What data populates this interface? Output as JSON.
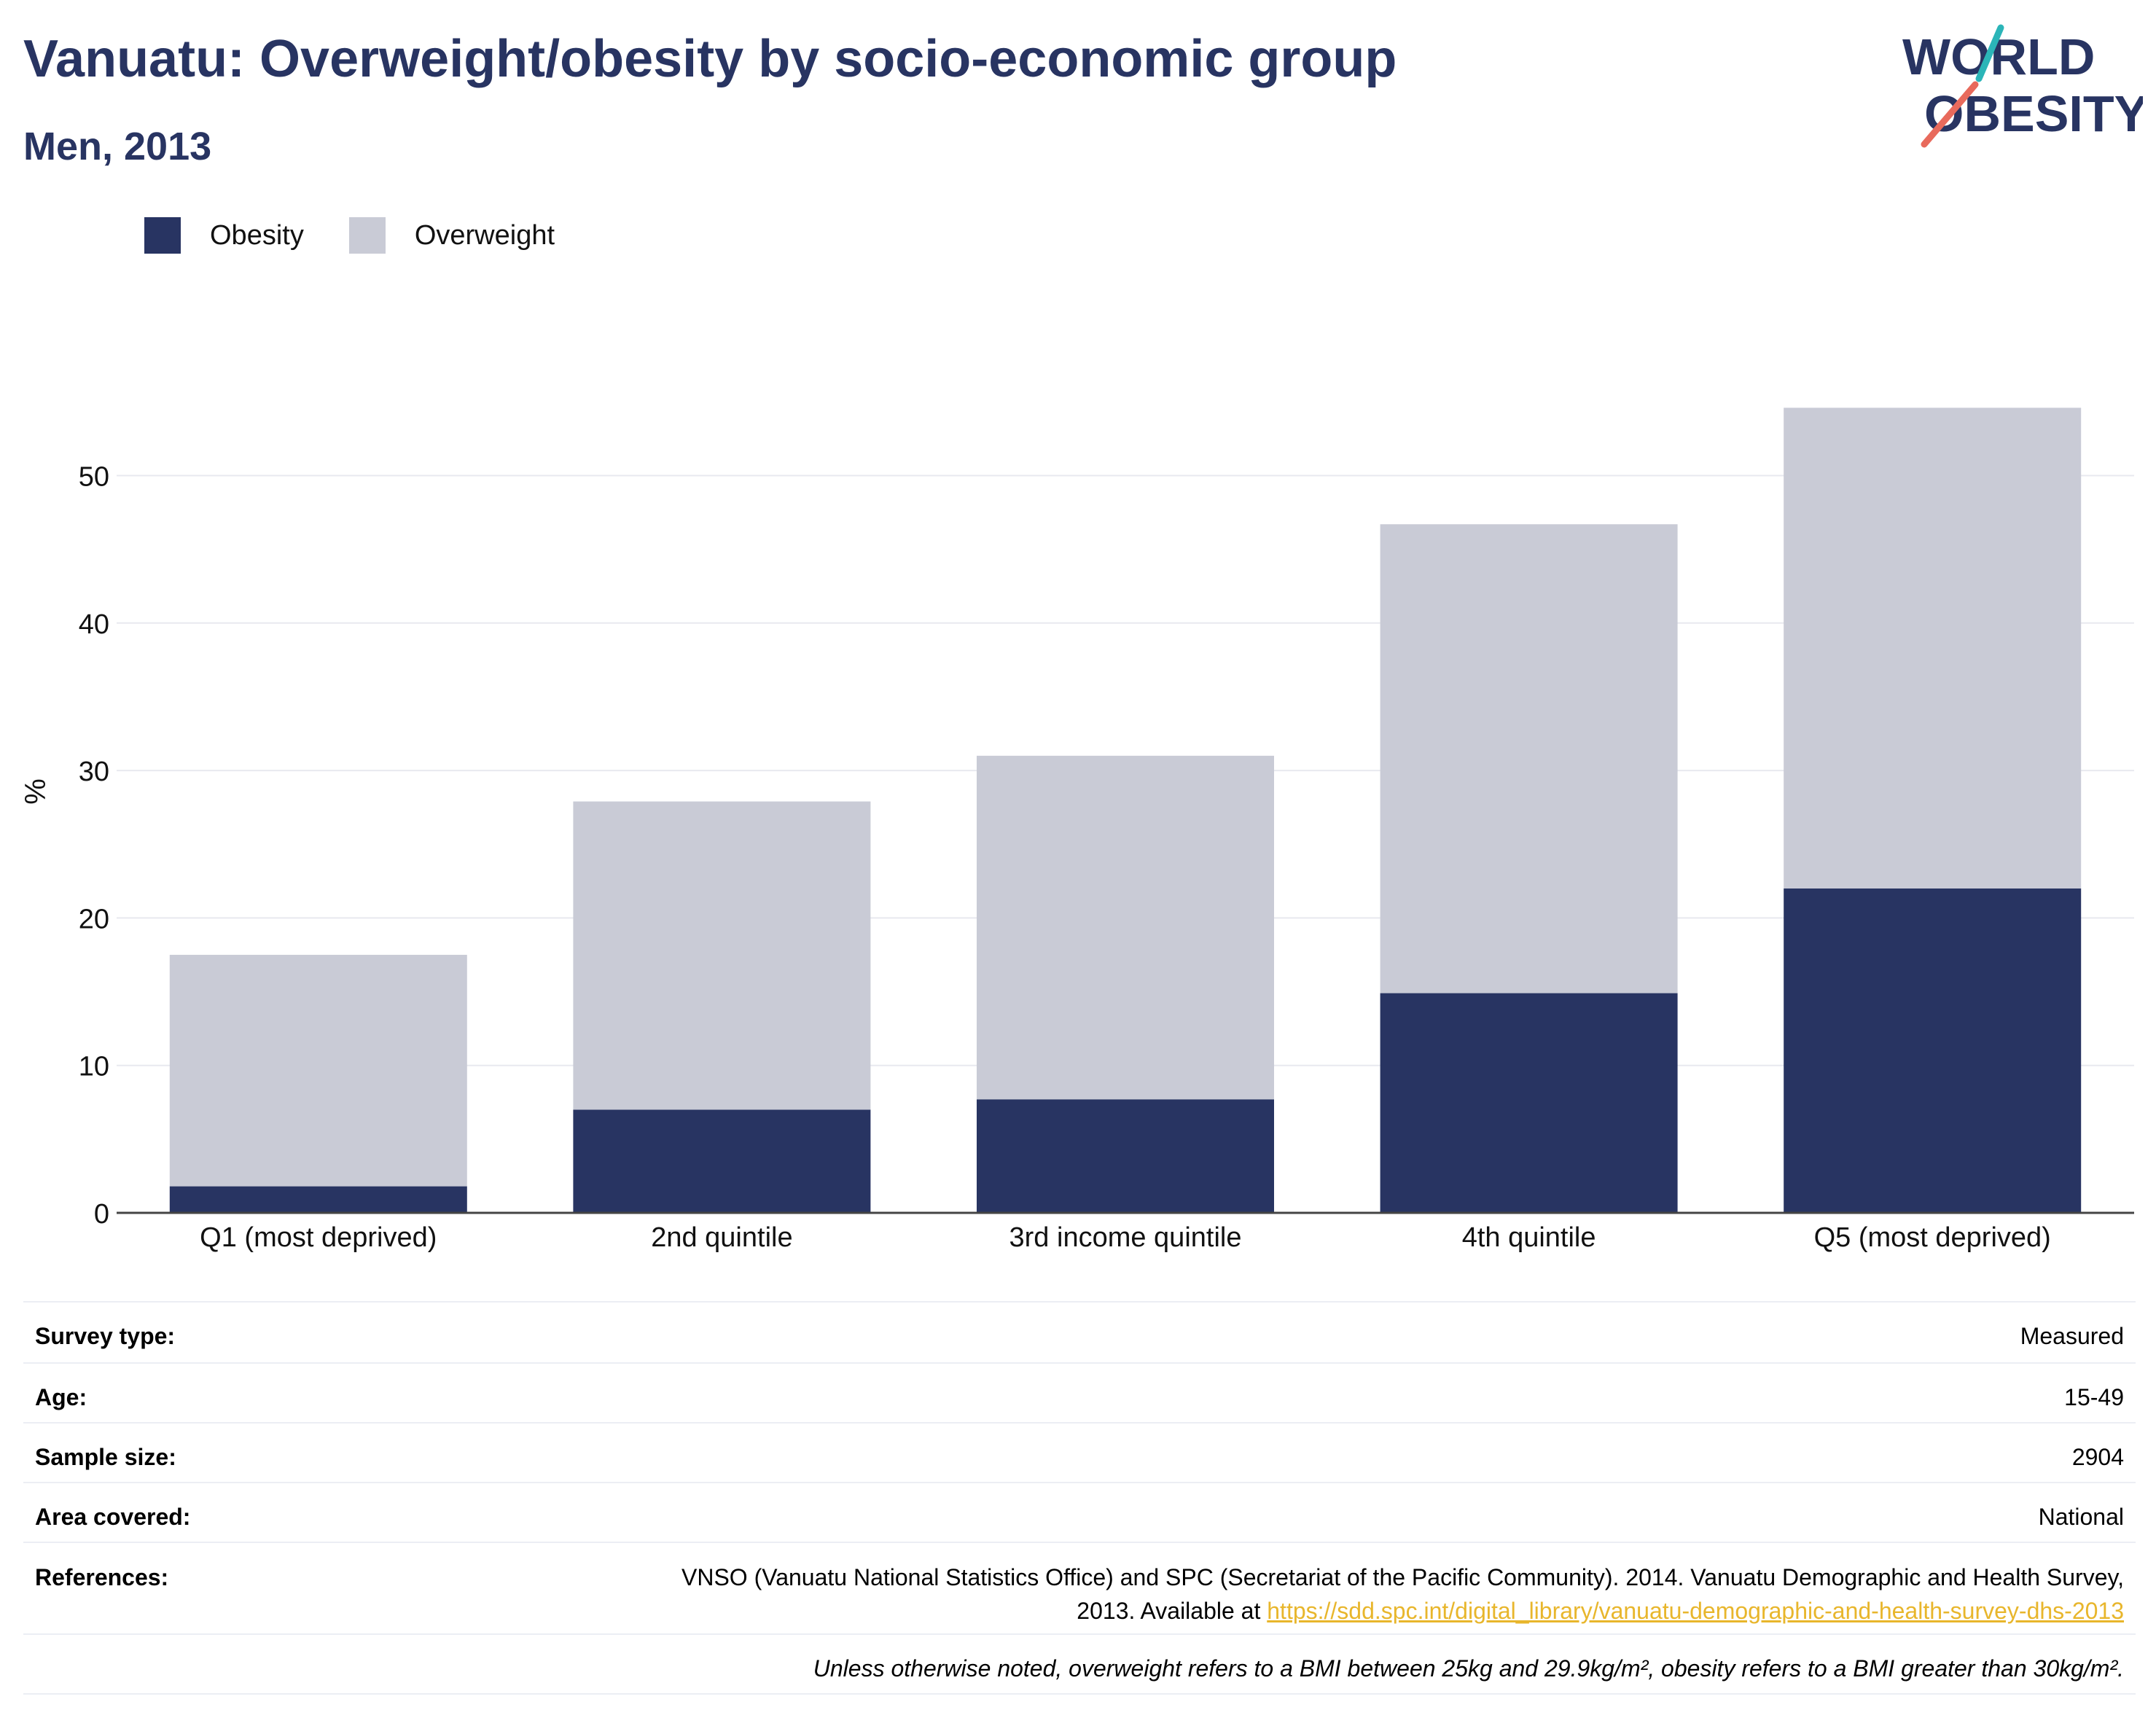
{
  "header": {
    "title": "Vanuatu: Overweight/obesity by socio-economic group",
    "subtitle": "Men, 2013"
  },
  "logo": {
    "line1": "WORLD",
    "line2": "OBESITY"
  },
  "colors": {
    "obesity": "#283462",
    "overweight": "#c9cbd6",
    "accent_teal": "#2bb5b8",
    "accent_red": "#e86a5c"
  },
  "chart_data": {
    "type": "bar",
    "stacked": true,
    "categories": [
      "Q1 (most deprived)",
      "2nd quintile",
      "3rd income quintile",
      "4th quintile",
      "Q5 (most deprived)"
    ],
    "series": [
      {
        "name": "Obesity",
        "values": [
          1.8,
          7.0,
          7.7,
          14.9,
          22.0
        ]
      },
      {
        "name": "Overweight",
        "values": [
          15.7,
          20.9,
          23.3,
          31.8,
          32.6
        ]
      }
    ],
    "ylabel": "%",
    "ylim": [
      0,
      58
    ],
    "yticks": [
      0,
      10,
      20,
      30,
      40,
      50
    ],
    "grid": true,
    "legend_position": "top-left"
  },
  "info": {
    "survey_type_label": "Survey type:",
    "survey_type_value": "Measured",
    "age_label": "Age:",
    "age_value": "15-49",
    "sample_size_label": "Sample size:",
    "sample_size_value": "2904",
    "area_label": "Area covered:",
    "area_value": "National",
    "references_label": "References:",
    "references_text": "VNSO (Vanuatu National Statistics Office) and SPC (Secretariat of the Pacific Community). 2014. Vanuatu Demographic and Health Survey, 2013. Available at ",
    "references_link": "https://sdd.spc.int/digital_library/vanuatu-demographic-and-health-survey-dhs-2013",
    "note": "Unless otherwise noted, overweight refers to a BMI between 25kg and 29.9kg/m², obesity refers to a BMI greater than 30kg/m²."
  }
}
